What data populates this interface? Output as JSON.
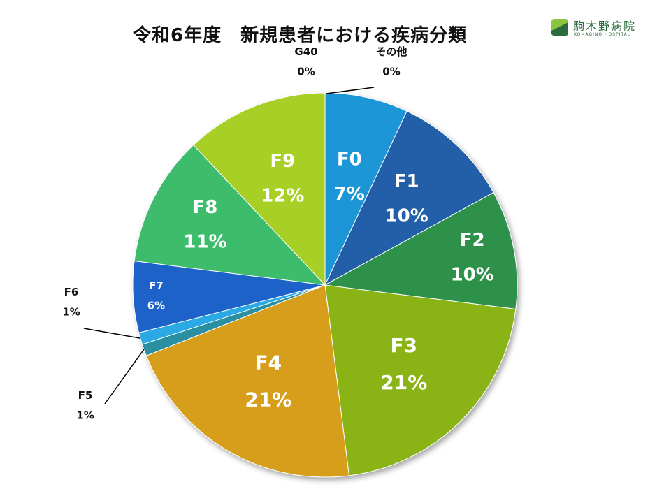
{
  "logo": {
    "name": "駒木野病院",
    "sub": "KOMAGINO HOSPITAL",
    "colors": {
      "dark": "#2a6b3c",
      "light": "#8cc63f"
    }
  },
  "chart_data": {
    "type": "pie",
    "title": "令和6年度　新規患者における疾病分類",
    "categories": [
      "F0",
      "F1",
      "F2",
      "F3",
      "F4",
      "F5",
      "F6",
      "F7",
      "F8",
      "F9",
      "G40",
      "その他"
    ],
    "values": [
      7,
      10,
      10,
      21,
      21,
      1,
      1,
      6,
      11,
      12,
      0,
      0
    ],
    "value_labels": [
      "7%",
      "10%",
      "10%",
      "21%",
      "21%",
      "1%",
      "1%",
      "6%",
      "11%",
      "12%",
      "0%",
      "0%"
    ],
    "colors": [
      "#1a96d6",
      "#215ea8",
      "#2d9148",
      "#8ab416",
      "#d79e1b",
      "#2b8fa0",
      "#29a9e5",
      "#1f62c8",
      "#3ebc6c",
      "#a8cf26",
      "#a8cf26",
      "#1a96d6"
    ],
    "start": "12 o'clock",
    "direction": "clockwise"
  }
}
